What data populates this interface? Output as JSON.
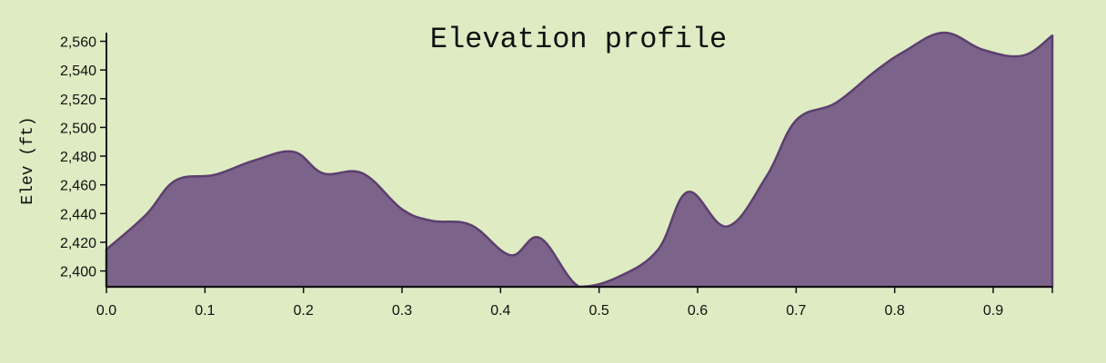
{
  "chart_data": {
    "type": "area",
    "title": "Elevation profile",
    "xlabel": "",
    "ylabel": "Elev (ft)",
    "xlim": [
      0,
      0.96
    ],
    "ylim": [
      2389,
      2566
    ],
    "xticks": [
      0.0,
      0.1,
      0.2,
      0.3,
      0.4,
      0.5,
      0.6,
      0.7,
      0.8,
      0.9
    ],
    "xtick_labels": [
      "0.0",
      "0.1",
      "0.2",
      "0.3",
      "0.4",
      "0.5",
      "0.6",
      "0.7",
      "0.8",
      "0.9"
    ],
    "yticks": [
      2400,
      2420,
      2440,
      2460,
      2480,
      2500,
      2520,
      2540,
      2560
    ],
    "ytick_labels": [
      "2,400",
      "2,420",
      "2,440",
      "2,460",
      "2,480",
      "2,500",
      "2,520",
      "2,540",
      "2,560"
    ],
    "grid": false,
    "series": [
      {
        "x": [
          0.0,
          0.04,
          0.07,
          0.11,
          0.15,
          0.19,
          0.22,
          0.26,
          0.3,
          0.33,
          0.37,
          0.41,
          0.44,
          0.48,
          0.52,
          0.56,
          0.59,
          0.63,
          0.67,
          0.7,
          0.74,
          0.78,
          0.81,
          0.85,
          0.89,
          0.93,
          0.96
        ],
        "values": [
          2415,
          2439,
          2463,
          2467,
          2477,
          2483,
          2468,
          2468,
          2443,
          2435,
          2432,
          2411,
          2423,
          2389,
          2396,
          2415,
          2455,
          2431,
          2466,
          2505,
          2517,
          2539,
          2553,
          2566,
          2554,
          2550,
          2564
        ]
      }
    ],
    "colors": {
      "fill": "#7b6389",
      "stroke": "#5c3f6f",
      "background": "#dfebc2",
      "axis": "#111111"
    }
  }
}
